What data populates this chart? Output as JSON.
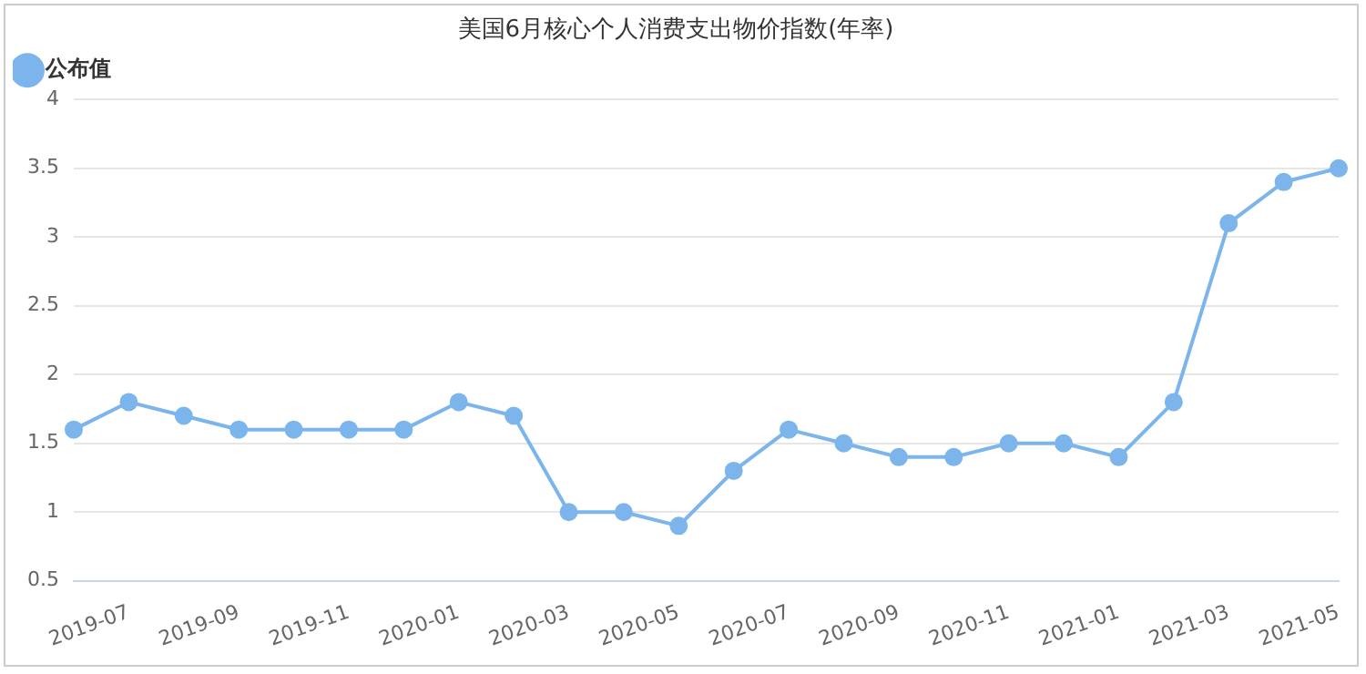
{
  "chart_data": {
    "type": "line",
    "title": "美国6月核心个人消费支出物价指数(年率)",
    "categories": [
      null,
      "2019-07",
      null,
      "2019-09",
      null,
      "2019-11",
      null,
      "2020-01",
      null,
      "2020-03",
      null,
      "2020-05",
      null,
      "2020-07",
      null,
      "2020-09",
      null,
      "2020-11",
      null,
      "2021-01",
      null,
      "2021-03",
      null,
      "2021-05"
    ],
    "series": [
      {
        "name": "公布值",
        "color": "#7cb5ec",
        "values": [
          1.6,
          1.8,
          1.7,
          1.6,
          1.6,
          1.6,
          1.6,
          1.8,
          1.7,
          1.0,
          1.0,
          0.9,
          1.3,
          1.6,
          1.5,
          1.4,
          1.4,
          1.5,
          1.5,
          1.4,
          1.8,
          3.1,
          3.4,
          3.5
        ]
      }
    ],
    "ylim": [
      0.5,
      4
    ],
    "yticks": [
      0.5,
      1,
      1.5,
      2,
      2.5,
      3,
      3.5,
      4
    ],
    "grid": "y",
    "legend": "top left",
    "marker": "circle",
    "line_style": "solid"
  }
}
